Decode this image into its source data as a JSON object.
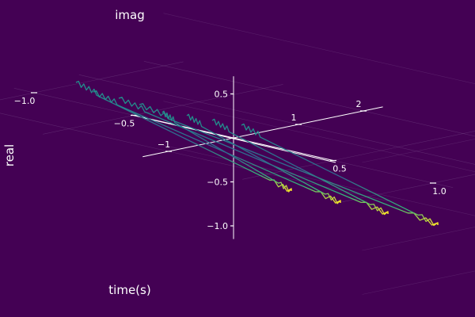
{
  "chart_data": {
    "type": "line",
    "projection": "3d",
    "xlabel": "real",
    "ylabel": "time(s)",
    "zlabel": "imag",
    "xlim": [
      -1.1,
      1.1
    ],
    "ylim": [
      -1.4,
      2.3
    ],
    "zlim": [
      -1.15,
      0.7
    ],
    "x_ticks": [
      -1.0,
      -0.5,
      0.5,
      1.0
    ],
    "x_tick_labels": [
      "−1.0",
      "−0.5",
      "0.5",
      "1.0"
    ],
    "y_ticks": [
      -1,
      1,
      2
    ],
    "y_tick_labels": [
      "−1",
      "1",
      "2"
    ],
    "z_ticks": [
      -1.0,
      -0.5,
      0.5
    ],
    "z_tick_labels": [
      "−1.0",
      "−0.5",
      "0.5"
    ],
    "grid": true,
    "background": "#440154",
    "colormap": "viridis",
    "color_start": "#31688e",
    "color_end": "#fde725",
    "series": [
      {
        "t": -1.1,
        "t_end": 0.4,
        "length": 2.2
      },
      {
        "t": -0.9,
        "t_end": 0.4,
        "length": 2.2
      },
      {
        "t": -0.6,
        "t_end": 0.4,
        "length": 2.2
      },
      {
        "t": -0.3,
        "t_end": 0.4,
        "length": 2.2
      },
      {
        "t": 0.1,
        "t_end": 0.4,
        "length": 2.2
      },
      {
        "t": 0.4,
        "t_end": 0.4,
        "length": 2.2
      },
      {
        "t": 0.8,
        "t_end": 0.4,
        "length": 2.2
      },
      {
        "t": 1.1,
        "t_end": 0.4,
        "length": 2.2
      }
    ]
  }
}
